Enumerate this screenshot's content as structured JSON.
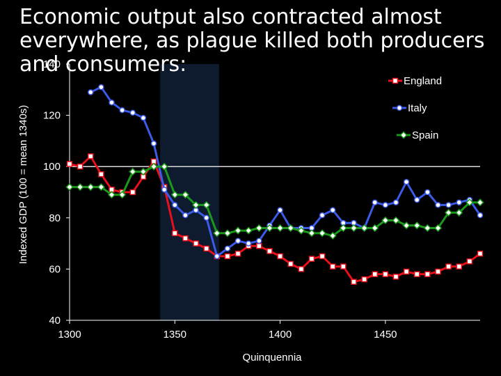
{
  "slide": {
    "title": "Economic output also contracted almost everywhere, as plague killed both producers and consumers:"
  },
  "chart_data": {
    "type": "line",
    "xlabel": "Quinquennia",
    "ylabel": "Indexed GDP (100 = mean 1340s)",
    "xlim": [
      1300,
      1495
    ],
    "ylim": [
      40,
      140
    ],
    "x_ticks": [
      1300,
      1350,
      1400,
      1450
    ],
    "y_ticks": [
      40,
      60,
      80,
      100,
      120,
      140
    ],
    "reference_line": 100,
    "shaded_period": [
      1343,
      1371
    ],
    "legend_position": "top-right",
    "x": [
      1300,
      1305,
      1310,
      1315,
      1320,
      1325,
      1330,
      1335,
      1340,
      1345,
      1350,
      1355,
      1360,
      1365,
      1370,
      1375,
      1380,
      1385,
      1390,
      1395,
      1400,
      1405,
      1410,
      1415,
      1420,
      1425,
      1430,
      1435,
      1440,
      1445,
      1450,
      1455,
      1460,
      1465,
      1470,
      1475,
      1480,
      1485,
      1490,
      1495
    ],
    "series": [
      {
        "name": "England",
        "color": "#e8101a",
        "values": [
          101,
          100,
          104,
          97,
          91,
          90,
          90,
          96,
          102,
          92,
          74,
          72,
          70,
          68,
          65,
          65,
          66,
          69,
          69,
          67,
          65,
          62,
          60,
          64,
          65,
          61,
          61,
          55,
          56,
          58,
          58,
          57,
          59,
          58,
          58,
          59,
          61,
          61,
          63,
          66
        ]
      },
      {
        "name": "Italy",
        "color": "#3b5be8",
        "values": [
          null,
          null,
          129,
          131,
          125,
          122,
          121,
          119,
          109,
          91,
          85,
          81,
          83,
          80,
          65,
          68,
          71,
          70,
          71,
          77,
          83,
          76,
          76,
          76,
          81,
          83,
          78,
          78,
          76,
          86,
          85,
          86,
          94,
          87,
          90,
          85,
          85,
          86,
          87,
          81
        ]
      },
      {
        "name": "Spain",
        "color": "#1a9a1a",
        "values": [
          92,
          92,
          92,
          92,
          89,
          89,
          98,
          98,
          100,
          100,
          89,
          89,
          85,
          85,
          74,
          74,
          75,
          75,
          76,
          76,
          76,
          76,
          75,
          74,
          74,
          73,
          76,
          76,
          76,
          76,
          79,
          79,
          77,
          77,
          76,
          76,
          82,
          82,
          86,
          86
        ]
      }
    ]
  }
}
